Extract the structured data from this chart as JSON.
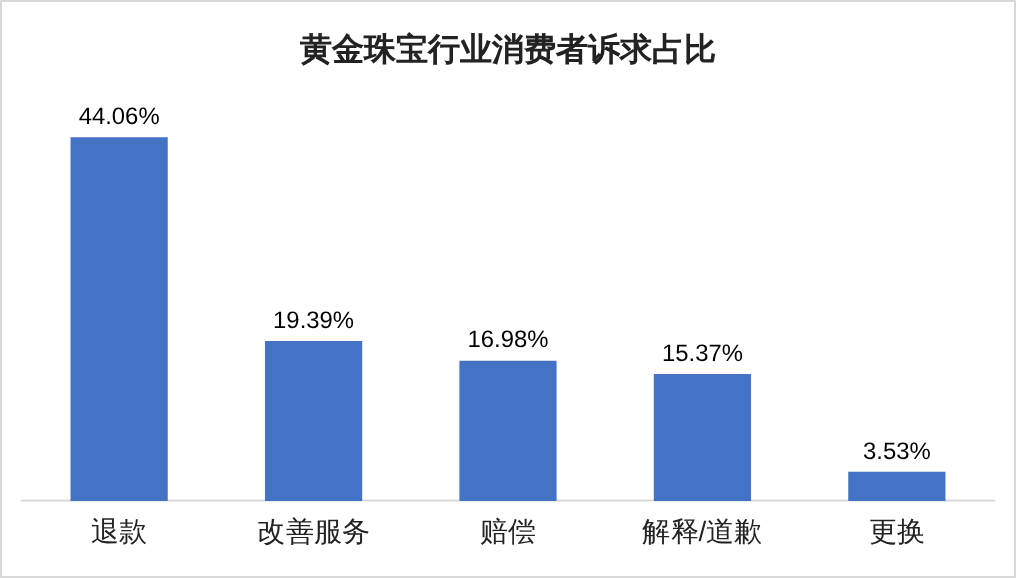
{
  "chart_data": {
    "type": "bar",
    "title": "黄金珠宝行业消费者诉求占比",
    "categories": [
      "退款",
      "改善服务",
      "赔偿",
      "解释/道歉",
      "更换"
    ],
    "values": [
      44.06,
      19.39,
      16.98,
      15.37,
      3.53
    ],
    "value_labels": [
      "44.06%",
      "19.39%",
      "16.98%",
      "15.37%",
      "3.53%"
    ],
    "color": "#4472c4",
    "grid": false,
    "legend": false
  }
}
